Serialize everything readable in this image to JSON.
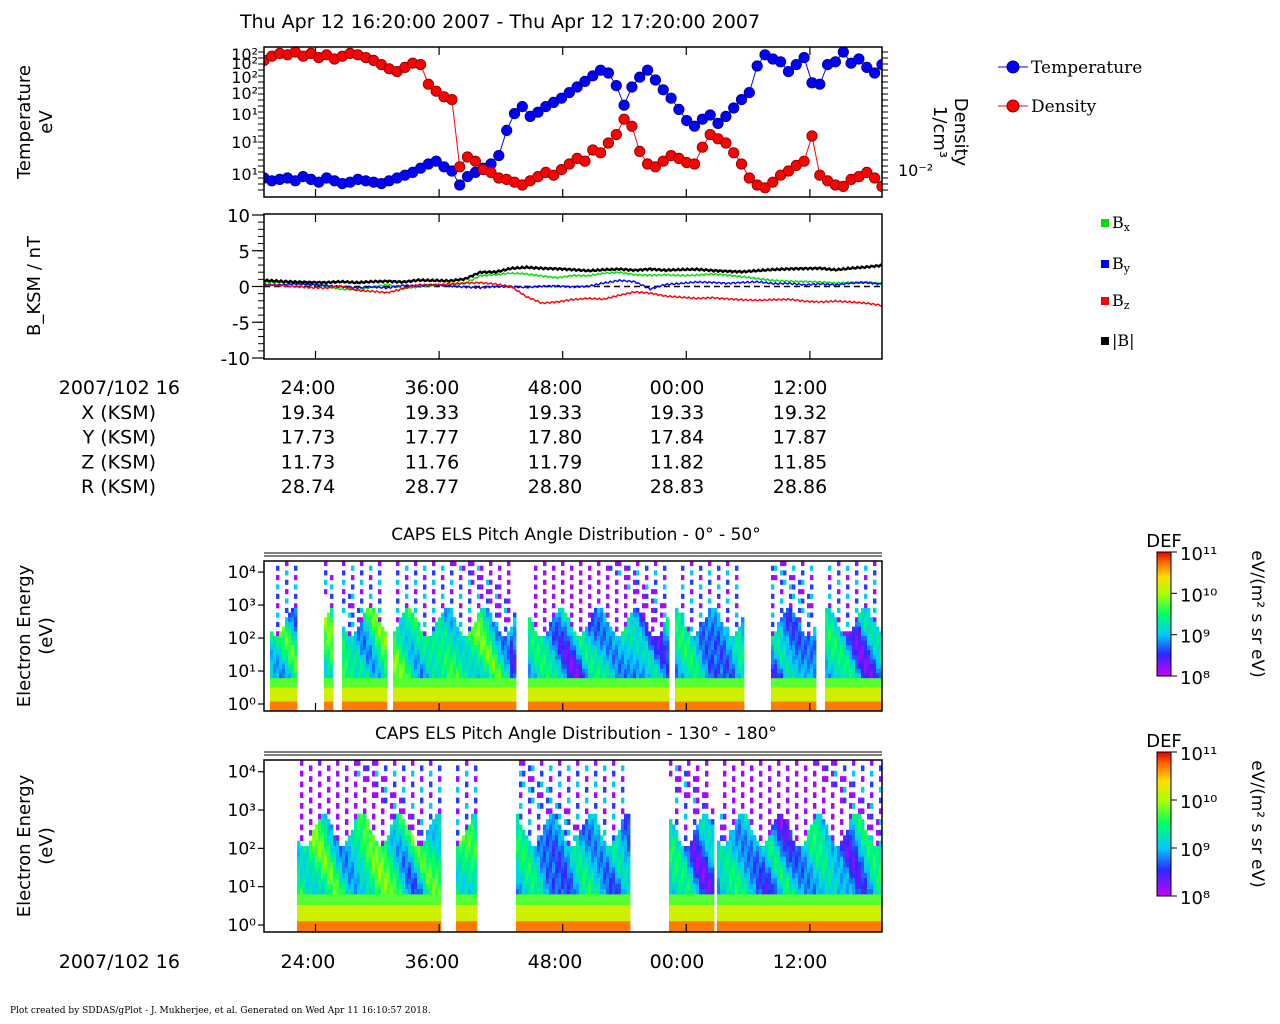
{
  "header": {
    "title": "Thu Apr 12 16:20:00 2007 - Thu Apr 12 17:20:00 2007"
  },
  "footer": {
    "credit": "Plot created by SDDAS/gPlot - J. Mukherjee, et al.  Generated on Wed Apr 11 16:10:57 2018."
  },
  "colors": {
    "temperature": "#0000ff",
    "density": "#ff0000",
    "bx": "#00dd00",
    "by": "#0000ff",
    "bz": "#ff0000",
    "btot": "#000000"
  },
  "ephemeris": {
    "time_row_label": "2007/102 16",
    "time_ticks": [
      "24:00",
      "36:00",
      "48:00",
      "00:00",
      "12:00"
    ],
    "rows": [
      {
        "label": "X (KSM)",
        "values": [
          "19.34",
          "19.33",
          "19.33",
          "19.33",
          "19.32"
        ]
      },
      {
        "label": "Y (KSM)",
        "values": [
          "17.73",
          "17.77",
          "17.80",
          "17.84",
          "17.87"
        ]
      },
      {
        "label": "Z (KSM)",
        "values": [
          "11.73",
          "11.76",
          "11.79",
          "11.82",
          "11.85"
        ]
      },
      {
        "label": "R (KSM)",
        "values": [
          "28.74",
          "28.77",
          "28.80",
          "28.83",
          "28.86"
        ]
      }
    ]
  },
  "chart_data": [
    {
      "type": "line",
      "ylabel": [
        "Temperature",
        "eV"
      ],
      "y2label": [
        "Density",
        "1/cm³"
      ],
      "y_tick_labels": [
        "10¹",
        "10¹",
        "10¹",
        "10²",
        "10²",
        "10²",
        "10²"
      ],
      "y2_tick_labels": [
        "10⁻²"
      ],
      "legend_placement": "right",
      "x_range_minutes": [
        20,
        80
      ],
      "series": [
        {
          "name": "Temperature",
          "unit": "eV",
          "marker": "circle",
          "x": [
            20.0,
            20.76,
            21.52,
            22.28,
            23.04,
            23.8,
            24.56,
            25.32,
            26.08,
            26.84,
            27.6,
            28.36,
            29.12,
            29.88,
            30.64,
            31.4,
            32.16,
            32.92,
            33.68,
            34.44,
            35.2,
            35.96,
            36.72,
            37.48,
            38.24,
            39.0,
            39.76,
            40.52,
            41.28,
            42.04,
            42.8,
            43.56,
            44.32,
            45.08,
            45.84,
            46.6,
            47.36,
            48.12,
            48.88,
            49.64,
            50.4,
            51.16,
            51.92,
            52.68,
            53.44,
            54.2,
            54.96,
            55.72,
            56.48,
            57.24,
            58.0,
            58.76,
            59.52,
            60.28,
            61.04,
            61.8,
            62.56,
            63.32,
            64.08,
            64.84,
            65.6,
            66.36,
            67.12,
            67.88,
            68.64,
            69.4,
            70.16,
            70.92,
            71.68,
            72.44,
            73.2,
            73.96,
            74.72,
            75.48,
            76.24,
            77.0,
            77.76,
            78.52,
            79.28,
            80.0
          ],
          "values": [
            0.1,
            0.08,
            0.09,
            0.1,
            0.08,
            0.11,
            0.09,
            0.07,
            0.1,
            0.08,
            0.06,
            0.07,
            0.09,
            0.08,
            0.07,
            0.06,
            0.08,
            0.1,
            0.12,
            0.14,
            0.17,
            0.2,
            0.22,
            0.18,
            0.15,
            0.05,
            0.11,
            0.14,
            0.17,
            0.2,
            0.26,
            0.44,
            0.56,
            0.61,
            0.54,
            0.57,
            0.61,
            0.64,
            0.67,
            0.71,
            0.75,
            0.79,
            0.83,
            0.87,
            0.85,
            0.76,
            0.62,
            0.75,
            0.82,
            0.87,
            0.8,
            0.73,
            0.67,
            0.59,
            0.51,
            0.47,
            0.52,
            0.55,
            0.49,
            0.54,
            0.6,
            0.66,
            0.71,
            0.9,
            0.98,
            0.95,
            0.93,
            0.86,
            0.91,
            0.96,
            0.78,
            0.77,
            0.91,
            0.93,
            1.0,
            0.92,
            0.95,
            0.89,
            0.85,
            0.91
          ]
        },
        {
          "name": "Density",
          "unit": "1/cm³",
          "marker": "circle",
          "x": [
            20.0,
            20.76,
            21.52,
            22.28,
            23.04,
            23.8,
            24.56,
            25.32,
            26.08,
            26.84,
            27.6,
            28.36,
            29.12,
            29.88,
            30.64,
            31.4,
            32.16,
            32.92,
            33.68,
            34.44,
            35.2,
            35.96,
            36.72,
            37.48,
            38.24,
            39.0,
            39.76,
            40.52,
            41.28,
            42.04,
            42.8,
            43.56,
            44.32,
            45.08,
            45.84,
            46.6,
            47.36,
            48.12,
            48.88,
            49.64,
            50.4,
            51.16,
            51.92,
            52.68,
            53.44,
            54.2,
            54.96,
            55.72,
            56.48,
            57.24,
            58.0,
            58.76,
            59.52,
            60.28,
            61.04,
            61.8,
            62.56,
            63.32,
            64.08,
            64.84,
            65.6,
            66.36,
            67.12,
            67.88,
            68.64,
            69.4,
            70.16,
            70.92,
            71.68,
            72.44,
            73.2,
            73.96,
            74.72,
            75.48,
            76.24,
            77.0,
            77.76,
            78.52,
            79.28,
            80.0
          ],
          "values": [
            0.94,
            0.97,
            0.99,
            0.98,
            1.0,
            0.97,
            0.99,
            0.96,
            0.98,
            0.95,
            0.97,
            0.99,
            0.98,
            0.96,
            0.94,
            0.91,
            0.88,
            0.86,
            0.89,
            0.92,
            0.91,
            0.77,
            0.72,
            0.68,
            0.66,
            0.18,
            0.25,
            0.22,
            0.16,
            0.14,
            0.1,
            0.09,
            0.07,
            0.05,
            0.08,
            0.11,
            0.14,
            0.12,
            0.16,
            0.2,
            0.24,
            0.22,
            0.3,
            0.28,
            0.35,
            0.41,
            0.52,
            0.47,
            0.29,
            0.2,
            0.18,
            0.22,
            0.26,
            0.24,
            0.21,
            0.2,
            0.32,
            0.41,
            0.38,
            0.35,
            0.28,
            0.2,
            0.1,
            0.05,
            0.03,
            0.07,
            0.12,
            0.15,
            0.19,
            0.22,
            0.4,
            0.12,
            0.08,
            0.05,
            0.04,
            0.09,
            0.11,
            0.14,
            0.1,
            0.04
          ]
        }
      ]
    },
    {
      "type": "line",
      "ylabel": "B_KSM / nT",
      "ylim": [
        -10,
        10
      ],
      "y_ticks": [
        -10,
        -5,
        0,
        5,
        10
      ],
      "x_range_minutes": [
        20,
        80
      ],
      "legend_placement": "right",
      "x": [
        20,
        21.5,
        23,
        24.5,
        26,
        27.5,
        29,
        30.5,
        32,
        33.5,
        35,
        36.5,
        38,
        39.5,
        41,
        42.5,
        44,
        45.5,
        47,
        48.5,
        50,
        51.5,
        53,
        54.5,
        56,
        57.5,
        59,
        60.5,
        62,
        63.5,
        65,
        66.5,
        68,
        69.5,
        71,
        72.5,
        74,
        75.5,
        77,
        78.5,
        80
      ],
      "series": [
        {
          "name": "Bx",
          "values": [
            0.6,
            0.5,
            0.4,
            0.3,
            0.1,
            -0.3,
            -0.4,
            -0.1,
            0.2,
            -0.3,
            -0.1,
            0.2,
            0.3,
            0.5,
            1.5,
            1.6,
            1.8,
            1.7,
            1.5,
            1.3,
            1.6,
            1.5,
            1.8,
            1.9,
            1.6,
            1.6,
            1.7,
            1.6,
            1.6,
            1.7,
            1.5,
            1.3,
            1.1,
            0.9,
            0.8,
            0.7,
            0.6,
            0.4,
            0.5,
            0.6,
            0.5
          ]
        },
        {
          "name": "By",
          "values": [
            0.3,
            0.2,
            0.3,
            0.2,
            0.1,
            0.0,
            -0.1,
            0.0,
            -0.2,
            0.1,
            0.0,
            0.2,
            0.1,
            0.0,
            -0.1,
            0.0,
            -0.1,
            -0.2,
            0.0,
            0.1,
            0.0,
            0.1,
            0.5,
            0.8,
            0.6,
            -0.4,
            0.3,
            0.5,
            0.7,
            0.6,
            0.4,
            0.5,
            0.6,
            0.4,
            0.5,
            0.3,
            0.4,
            0.2,
            0.4,
            0.5,
            0.3
          ]
        },
        {
          "name": "Bz",
          "values": [
            0.3,
            0.2,
            0.0,
            -0.2,
            -0.3,
            0.0,
            -0.5,
            -0.6,
            -0.8,
            -0.3,
            0.2,
            0.1,
            0.3,
            0.5,
            0.6,
            0.4,
            0.0,
            -1.5,
            -2.4,
            -2.2,
            -1.8,
            -1.6,
            -1.7,
            -1.2,
            -0.8,
            -1.0,
            -1.4,
            -1.5,
            -1.6,
            -1.5,
            -1.7,
            -1.9,
            -2.0,
            -1.9,
            -1.8,
            -2.0,
            -2.1,
            -2.0,
            -2.2,
            -2.4,
            -2.7
          ]
        },
        {
          "name": "|B|",
          "values": [
            0.9,
            0.8,
            0.7,
            0.6,
            0.5,
            0.6,
            0.5,
            0.7,
            0.8,
            0.7,
            0.9,
            0.8,
            0.7,
            1.0,
            2.0,
            2.1,
            2.6,
            2.7,
            2.5,
            2.4,
            2.3,
            2.2,
            2.4,
            2.5,
            2.3,
            2.4,
            2.2,
            2.3,
            2.4,
            2.3,
            2.2,
            2.1,
            2.2,
            2.3,
            2.4,
            2.5,
            2.6,
            2.4,
            2.6,
            2.7,
            2.9
          ]
        }
      ]
    },
    {
      "type": "heatmap",
      "title": "CAPS ELS Pitch Angle Distribution - 0° - 50°",
      "ylabel": [
        "Electron Energy",
        "(eV)"
      ],
      "y_tick_labels": [
        "10⁰",
        "10¹",
        "10²",
        "10³",
        "10⁴"
      ],
      "colorbar": {
        "label": "DEF",
        "unit": "eV/(m² s sr eV)",
        "tick_labels": [
          "10¹¹",
          "10¹⁰",
          "10⁹",
          "10⁸"
        ],
        "range_log10": [
          8,
          11
        ]
      },
      "data_gaps_minutes": [
        [
          20,
          20.5
        ],
        [
          23.3,
          25.8
        ],
        [
          26.6,
          27.6
        ],
        [
          31.8,
          32.4
        ],
        [
          44.4,
          45.5
        ],
        [
          59.3,
          59.9
        ],
        [
          66.6,
          69.3
        ],
        [
          73.7,
          74.5
        ]
      ]
    },
    {
      "type": "heatmap",
      "title": "CAPS ELS Pitch Angle Distribution - 130° - 180°",
      "ylabel": [
        "Electron Energy",
        "(eV)"
      ],
      "y_tick_labels": [
        "10⁰",
        "10¹",
        "10²",
        "10³",
        "10⁴"
      ],
      "colorbar": {
        "label": "DEF",
        "unit": "eV/(m² s sr eV)",
        "tick_labels": [
          "10¹¹",
          "10¹⁰",
          "10⁹",
          "10⁸"
        ],
        "range_log10": [
          8,
          11
        ]
      },
      "data_gaps_minutes": [
        [
          20,
          23.2
        ],
        [
          37.2,
          38.6
        ],
        [
          40.6,
          44.6
        ],
        [
          55.6,
          59.2
        ],
        [
          63.6,
          64.0
        ]
      ]
    }
  ]
}
